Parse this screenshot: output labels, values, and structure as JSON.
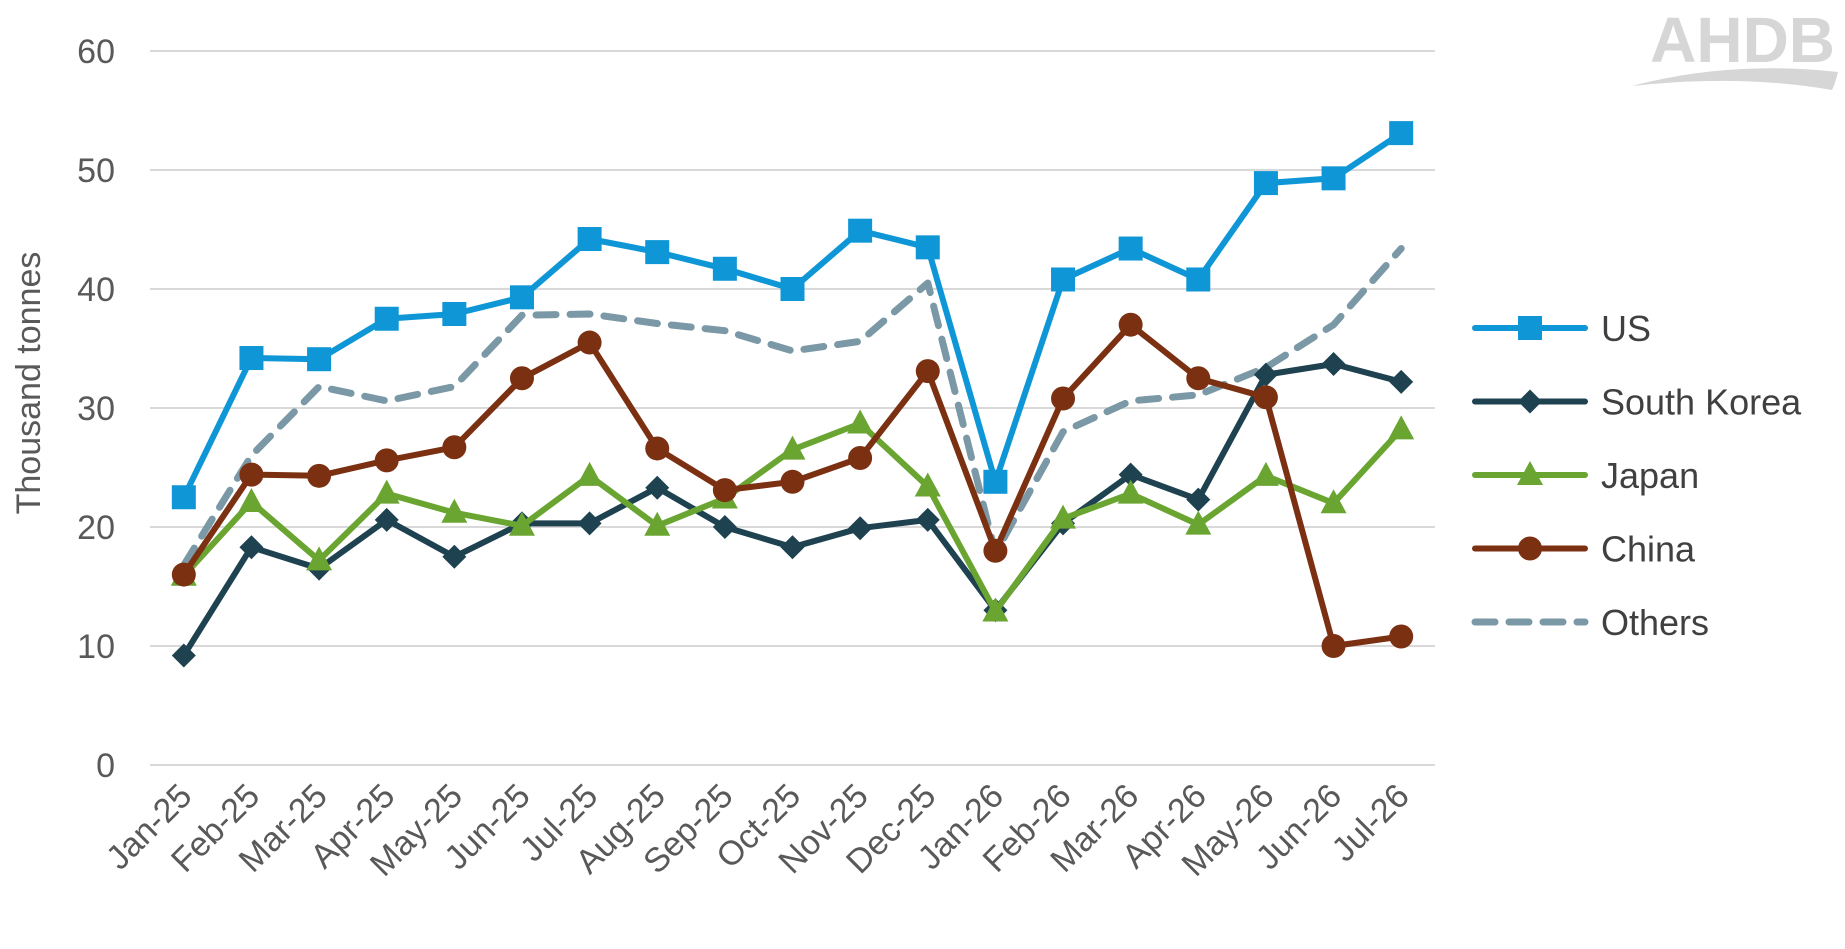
{
  "logo": {
    "text": "AHDB"
  },
  "chart_data": {
    "type": "line",
    "title": "",
    "xlabel": "",
    "ylabel": "Thousand tonnes",
    "ylim": [
      0,
      60
    ],
    "yticks": [
      0,
      10,
      20,
      30,
      40,
      50,
      60
    ],
    "grid": true,
    "legend_position": "right",
    "categories": [
      "Jan-25",
      "Feb-25",
      "Mar-25",
      "Apr-25",
      "May-25",
      "Jun-25",
      "Jul-25",
      "Aug-25",
      "Sep-25",
      "Oct-25",
      "Nov-25",
      "Dec-25",
      "Jan-26",
      "Feb-26",
      "Mar-26",
      "Apr-26",
      "May-26",
      "Jun-26",
      "Jul-26"
    ],
    "series": [
      {
        "name": "US",
        "color": "#0f96d6",
        "marker": "square",
        "dash": false,
        "values": [
          22.5,
          34.2,
          34.1,
          37.5,
          37.9,
          39.3,
          44.2,
          43.1,
          41.7,
          40.0,
          44.9,
          43.5,
          23.8,
          40.8,
          43.4,
          40.8,
          48.9,
          49.3,
          53.1
        ]
      },
      {
        "name": "South Korea",
        "color": "#1e4250",
        "marker": "diamond",
        "dash": false,
        "values": [
          9.2,
          18.3,
          16.5,
          20.6,
          17.5,
          20.3,
          20.3,
          23.3,
          20.0,
          18.3,
          19.9,
          20.6,
          13.0,
          20.3,
          24.4,
          22.3,
          32.8,
          33.7,
          32.2
        ]
      },
      {
        "name": "Japan",
        "color": "#6aa532",
        "marker": "triangle",
        "dash": false,
        "values": [
          15.9,
          22.1,
          17.2,
          22.8,
          21.2,
          20.1,
          24.3,
          20.1,
          22.4,
          26.5,
          28.7,
          23.4,
          12.9,
          20.7,
          22.8,
          20.2,
          24.3,
          22.0,
          28.2
        ]
      },
      {
        "name": "China",
        "color": "#7b3012",
        "marker": "circle",
        "dash": false,
        "values": [
          16.0,
          24.4,
          24.3,
          25.6,
          26.7,
          32.5,
          35.5,
          26.6,
          23.1,
          23.8,
          25.8,
          33.1,
          18.0,
          30.8,
          37.0,
          32.5,
          30.9,
          10.0,
          10.8
        ]
      },
      {
        "name": "Others",
        "color": "#7b98a6",
        "marker": "none",
        "dash": true,
        "values": [
          16.8,
          26.0,
          31.8,
          30.6,
          31.8,
          37.8,
          37.9,
          37.1,
          36.5,
          34.8,
          35.6,
          40.5,
          17.8,
          28.0,
          30.6,
          31.1,
          33.4,
          37.0,
          43.4
        ]
      }
    ]
  }
}
